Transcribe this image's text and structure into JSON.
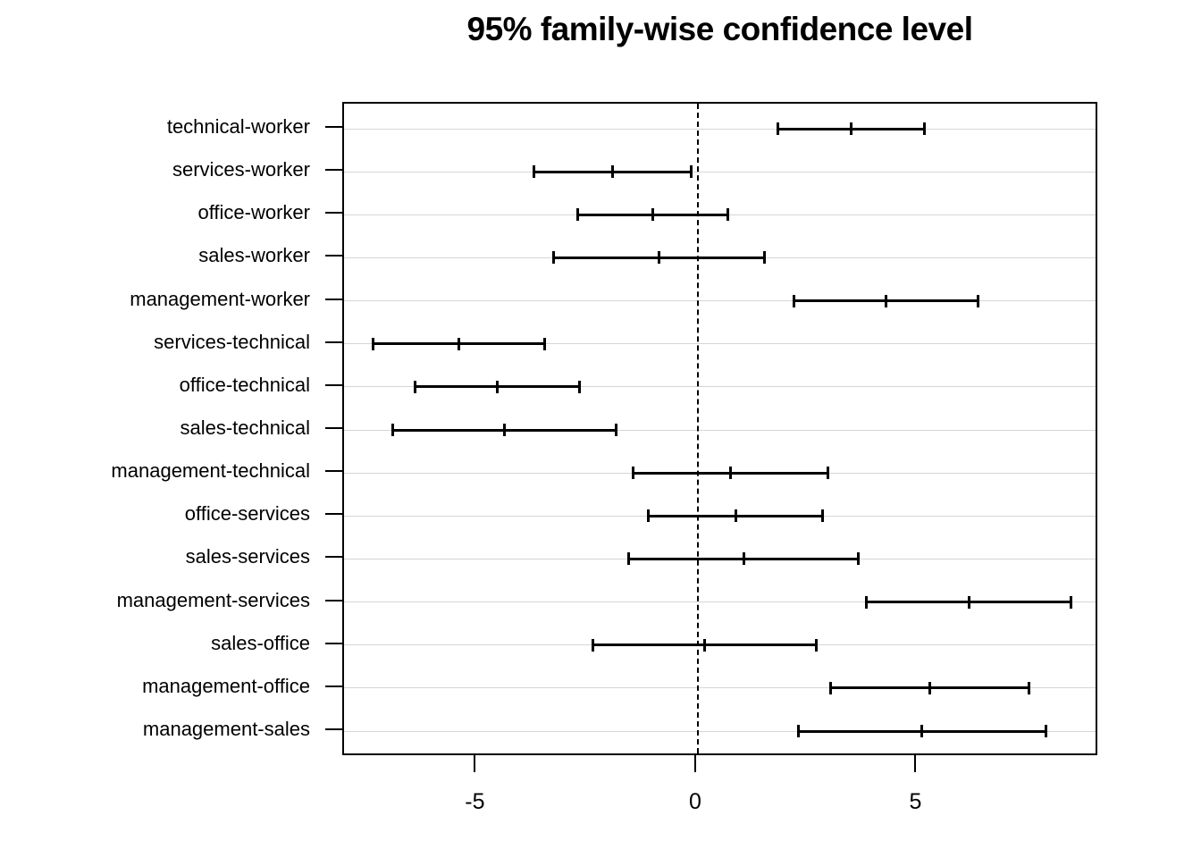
{
  "chart_data": {
    "type": "scatter",
    "subtype": "horizontal-confidence-intervals (TukeyHSD pairwise comparisons)",
    "title": "95% family-wise confidence level",
    "xlabel": "",
    "ylabel": "",
    "x_ticks": [
      -5,
      0,
      5
    ],
    "xlim": [
      -8.01,
      9.13
    ],
    "reference_line_x": 0,
    "grid": "one light-gray horizontal line per category row",
    "legend": "none",
    "rows": [
      {
        "label": "technical-worker",
        "lwr": 1.83,
        "diff": 3.51,
        "upr": 5.18
      },
      {
        "label": "services-worker",
        "lwr": -3.7,
        "diff": -1.91,
        "upr": -0.12
      },
      {
        "label": "office-worker",
        "lwr": -2.71,
        "diff": -1.0,
        "upr": 0.71
      },
      {
        "label": "sales-worker",
        "lwr": -3.26,
        "diff": -0.85,
        "upr": 1.55
      },
      {
        "label": "management-worker",
        "lwr": 2.19,
        "diff": 4.29,
        "upr": 6.39
      },
      {
        "label": "services-technical",
        "lwr": -7.37,
        "diff": -5.41,
        "upr": -3.45
      },
      {
        "label": "office-technical",
        "lwr": -6.4,
        "diff": -4.53,
        "upr": -2.66
      },
      {
        "label": "sales-technical",
        "lwr": -6.91,
        "diff": -4.37,
        "upr": -1.83
      },
      {
        "label": "management-technical",
        "lwr": -1.46,
        "diff": 0.76,
        "upr": 2.98
      },
      {
        "label": "office-services",
        "lwr": -1.11,
        "diff": 0.88,
        "upr": 2.87
      },
      {
        "label": "sales-services",
        "lwr": -1.55,
        "diff": 1.06,
        "upr": 3.68
      },
      {
        "label": "management-services",
        "lwr": 3.84,
        "diff": 6.17,
        "upr": 8.5
      },
      {
        "label": "sales-office",
        "lwr": -2.37,
        "diff": 0.18,
        "upr": 2.73
      },
      {
        "label": "management-office",
        "lwr": 3.02,
        "diff": 5.28,
        "upr": 7.55
      },
      {
        "label": "management-sales",
        "lwr": 2.29,
        "diff": 5.11,
        "upr": 7.93
      }
    ]
  },
  "colors": {
    "line": "#000000",
    "grid": "#d6d6d6",
    "text": "#000000",
    "background": "#ffffff"
  }
}
